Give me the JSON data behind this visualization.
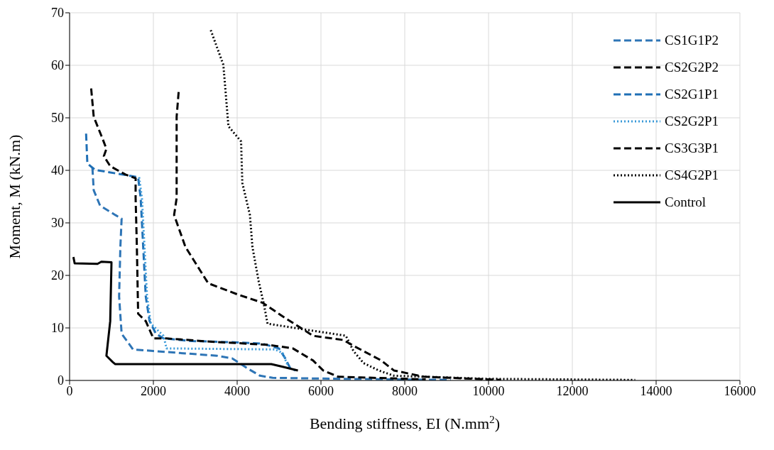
{
  "chart_data": {
    "type": "line",
    "xlabel": "Bending stiffness, EI (N.mm$^{2}$)",
    "ylabel": "Moment, M (kN.m)",
    "xlim": [
      0,
      16000
    ],
    "ylim": [
      0,
      70
    ],
    "xticks": [
      0,
      2000,
      4000,
      6000,
      8000,
      10000,
      12000,
      14000,
      16000
    ],
    "yticks": [
      0,
      10,
      20,
      30,
      40,
      50,
      60,
      70
    ],
    "grid": true,
    "legend": "top right",
    "marker": "none",
    "series": [
      {
        "name": "CS1G1P2",
        "color": "#2e75b6",
        "line_style": "dashed",
        "x": [
          545,
          576,
          727,
          1091,
          1242,
          1212,
          1182,
          1242,
          1515,
          2000,
          3520,
          3882,
          4244,
          4545,
          4846,
          6500,
          9100
        ],
        "values": [
          40.5,
          36.2,
          33.3,
          31.5,
          30.8,
          25.4,
          16,
          8.9,
          5.9,
          5.6,
          4.7,
          4.2,
          2.3,
          0.9,
          0.5,
          0.3,
          0.1
        ]
      },
      {
        "name": "CS2G2P2",
        "color": "#000000",
        "line_style": "dashed",
        "x": [
          2603,
          2555,
          2555,
          2495,
          2766,
          3309,
          4002,
          4605,
          5087,
          5811,
          6535,
          6776,
          7439,
          7740,
          8464,
          10300
        ],
        "values": [
          54.9,
          50.2,
          34.7,
          31.5,
          25.4,
          18.5,
          16.4,
          14.8,
          12.2,
          8.5,
          7.7,
          6.6,
          3.8,
          1.9,
          0.7,
          0.1
        ]
      },
      {
        "name": "CS2G1P1",
        "color": "#1f6fb5",
        "line_style": "dashed",
        "x": [
          394,
          424,
          606,
          1636,
          1697,
          1757,
          1818,
          1909,
          2060,
          2242,
          2917,
          3821,
          4605,
          4997,
          5148,
          5268,
          5390
        ],
        "values": [
          47,
          41.3,
          40.1,
          38.7,
          34.7,
          25.4,
          16,
          11.3,
          8.9,
          8,
          7.5,
          7.3,
          7,
          6.1,
          4.2,
          2.3,
          1.9
        ]
      },
      {
        "name": "CS2G2P1",
        "color": "#3a9ad9",
        "line_style": "dotted",
        "x": [
          1660,
          1727,
          1788,
          1848,
          1939,
          2242,
          2314,
          4906,
          5087,
          5208
        ],
        "values": [
          38.7,
          34.7,
          25.4,
          16,
          10.8,
          8.5,
          6.1,
          5.9,
          5.2,
          2.8
        ]
      },
      {
        "name": "CS3G3P1",
        "color": "#000000",
        "line_style": "dashed",
        "x": [
          515,
          576,
          788,
          879,
          818,
          970,
          1333,
          1576,
          1576,
          1606,
          1636,
          1818,
          2000,
          2314,
          3520,
          4726,
          5329,
          5811,
          6052,
          6414,
          8500
        ],
        "values": [
          55.6,
          50.2,
          46,
          44.1,
          42.7,
          40.8,
          39.2,
          38.5,
          34.7,
          25.4,
          12.7,
          11.3,
          8,
          8,
          7.3,
          6.8,
          6.1,
          3.8,
          1.9,
          0.7,
          0.2
        ]
      },
      {
        "name": "CS4G2P1",
        "color": "#000000",
        "line_style": "dotted",
        "x": [
          3369,
          3670,
          3791,
          4093,
          4123,
          4304,
          4364,
          4515,
          4635,
          4725,
          6595,
          6776,
          7017,
          7379,
          7740,
          10000,
          13500
        ],
        "values": [
          66.7,
          60.1,
          48.4,
          45.5,
          37.6,
          31.5,
          25.4,
          18.8,
          14.6,
          10.8,
          8.5,
          5.6,
          3.3,
          1.9,
          0.9,
          0.3,
          0.1
        ]
      },
      {
        "name": "Control",
        "color": "#000000",
        "line_style": "solid",
        "x": [
          91,
          121,
          667,
          757,
          1000,
          970,
          879,
          1030,
          1091,
          4816,
          5087,
          5450
        ],
        "values": [
          23.5,
          22.3,
          22.2,
          22.6,
          22.5,
          11.3,
          4.7,
          3.5,
          3.1,
          3.1,
          2.6,
          1.9
        ]
      }
    ]
  }
}
